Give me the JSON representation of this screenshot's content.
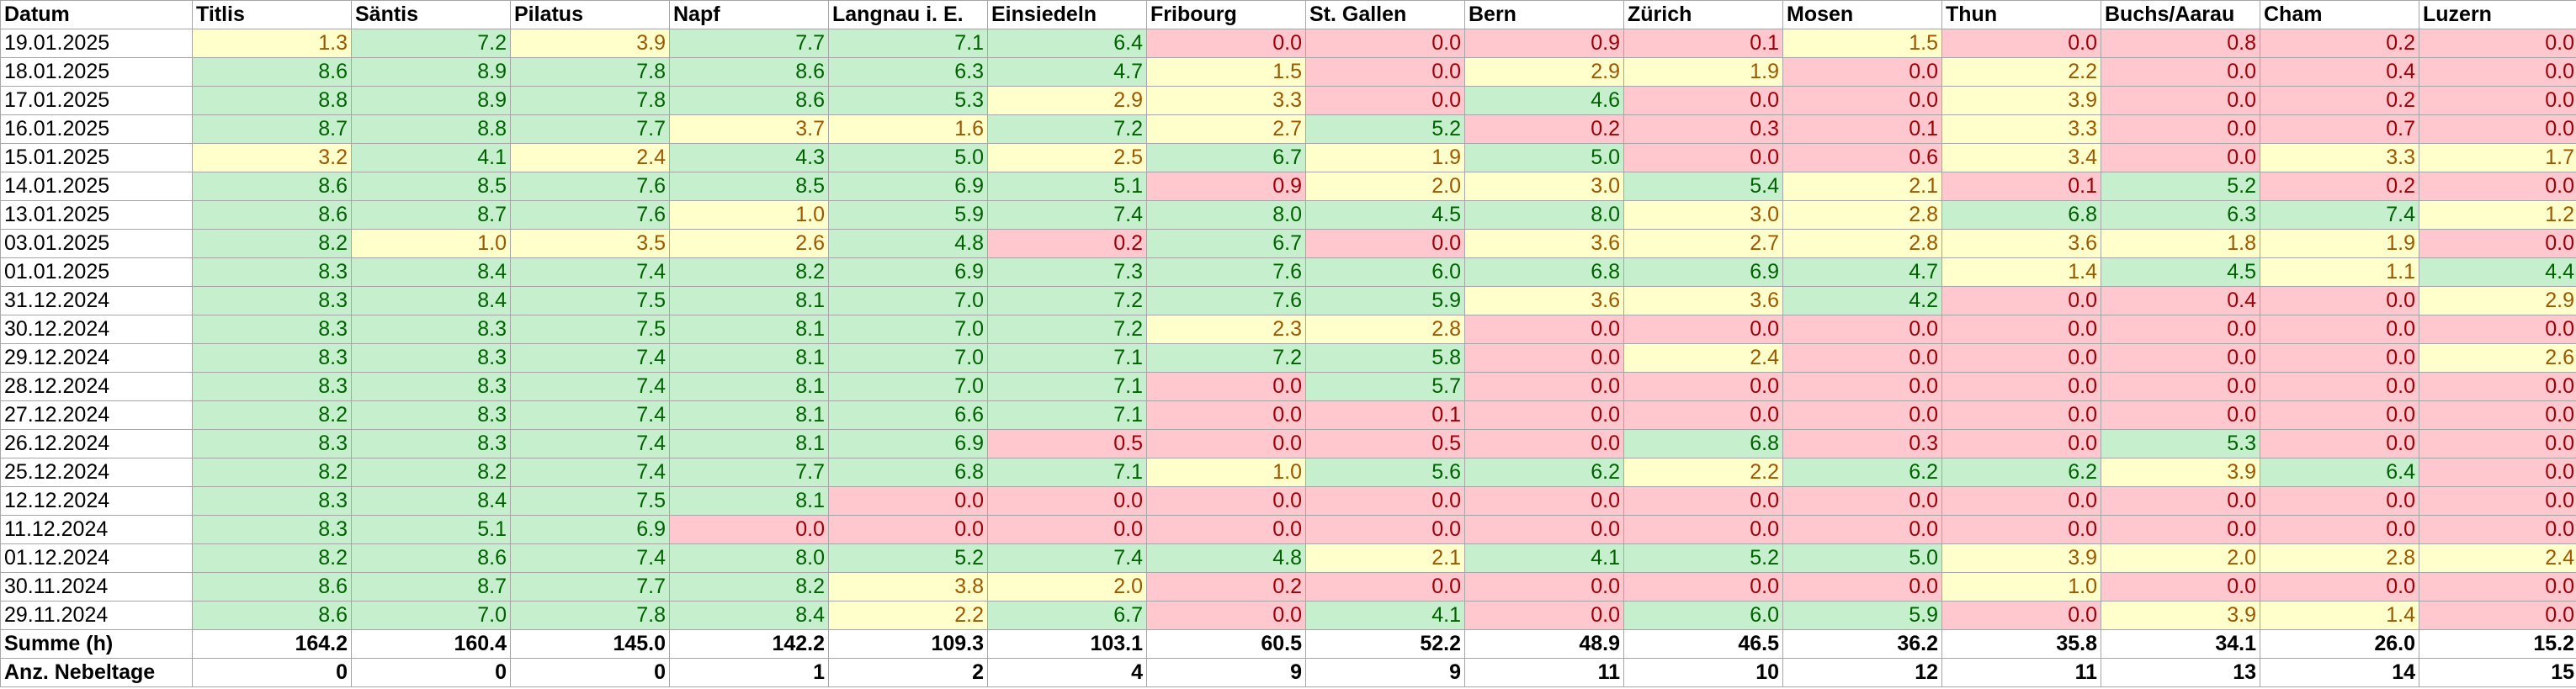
{
  "table": {
    "headers": [
      "Datum",
      "Titlis",
      "Säntis",
      "Pilatus",
      "Napf",
      "Langnau i. E.",
      "Einsiedeln",
      "Fribourg",
      "St. Gallen",
      "Bern",
      "Zürich",
      "Mosen",
      "Thun",
      "Buchs/Aarau",
      "Cham",
      "Luzern"
    ],
    "rows": [
      {
        "date": "19.01.2025",
        "values": [
          "1.3",
          "7.2",
          "3.9",
          "7.7",
          "7.1",
          "6.4",
          "0.0",
          "0.0",
          "0.9",
          "0.1",
          "1.5",
          "0.0",
          "0.8",
          "0.2",
          "0.0"
        ]
      },
      {
        "date": "18.01.2025",
        "values": [
          "8.6",
          "8.9",
          "7.8",
          "8.6",
          "6.3",
          "4.7",
          "1.5",
          "0.0",
          "2.9",
          "1.9",
          "0.0",
          "2.2",
          "0.0",
          "0.4",
          "0.0"
        ]
      },
      {
        "date": "17.01.2025",
        "values": [
          "8.8",
          "8.9",
          "7.8",
          "8.6",
          "5.3",
          "2.9",
          "3.3",
          "0.0",
          "4.6",
          "0.0",
          "0.0",
          "3.9",
          "0.0",
          "0.2",
          "0.0"
        ]
      },
      {
        "date": "16.01.2025",
        "values": [
          "8.7",
          "8.8",
          "7.7",
          "3.7",
          "1.6",
          "7.2",
          "2.7",
          "5.2",
          "0.2",
          "0.3",
          "0.1",
          "3.3",
          "0.0",
          "0.7",
          "0.0"
        ]
      },
      {
        "date": "15.01.2025",
        "values": [
          "3.2",
          "4.1",
          "2.4",
          "4.3",
          "5.0",
          "2.5",
          "6.7",
          "1.9",
          "5.0",
          "0.0",
          "0.6",
          "3.4",
          "0.0",
          "3.3",
          "1.7"
        ]
      },
      {
        "date": "14.01.2025",
        "values": [
          "8.6",
          "8.5",
          "7.6",
          "8.5",
          "6.9",
          "5.1",
          "0.9",
          "2.0",
          "3.0",
          "5.4",
          "2.1",
          "0.1",
          "5.2",
          "0.2",
          "0.0"
        ]
      },
      {
        "date": "13.01.2025",
        "values": [
          "8.6",
          "8.7",
          "7.6",
          "1.0",
          "5.9",
          "7.4",
          "8.0",
          "4.5",
          "8.0",
          "3.0",
          "2.8",
          "6.8",
          "6.3",
          "7.4",
          "1.2"
        ]
      },
      {
        "date": "03.01.2025",
        "values": [
          "8.2",
          "1.0",
          "3.5",
          "2.6",
          "4.8",
          "0.2",
          "6.7",
          "0.0",
          "3.6",
          "2.7",
          "2.8",
          "3.6",
          "1.8",
          "1.9",
          "0.0"
        ]
      },
      {
        "date": "01.01.2025",
        "values": [
          "8.3",
          "8.4",
          "7.4",
          "8.2",
          "6.9",
          "7.3",
          "7.6",
          "6.0",
          "6.8",
          "6.9",
          "4.7",
          "1.4",
          "4.5",
          "1.1",
          "4.4"
        ]
      },
      {
        "date": "31.12.2024",
        "values": [
          "8.3",
          "8.4",
          "7.5",
          "8.1",
          "7.0",
          "7.2",
          "7.6",
          "5.9",
          "3.6",
          "3.6",
          "4.2",
          "0.0",
          "0.4",
          "0.0",
          "2.9"
        ]
      },
      {
        "date": "30.12.2024",
        "values": [
          "8.3",
          "8.3",
          "7.5",
          "8.1",
          "7.0",
          "7.2",
          "2.3",
          "2.8",
          "0.0",
          "0.0",
          "0.0",
          "0.0",
          "0.0",
          "0.0",
          "0.0"
        ]
      },
      {
        "date": "29.12.2024",
        "values": [
          "8.3",
          "8.3",
          "7.4",
          "8.1",
          "7.0",
          "7.1",
          "7.2",
          "5.8",
          "0.0",
          "2.4",
          "0.0",
          "0.0",
          "0.0",
          "0.0",
          "2.6"
        ]
      },
      {
        "date": "28.12.2024",
        "values": [
          "8.3",
          "8.3",
          "7.4",
          "8.1",
          "7.0",
          "7.1",
          "0.0",
          "5.7",
          "0.0",
          "0.0",
          "0.0",
          "0.0",
          "0.0",
          "0.0",
          "0.0"
        ]
      },
      {
        "date": "27.12.2024",
        "values": [
          "8.2",
          "8.3",
          "7.4",
          "8.1",
          "6.6",
          "7.1",
          "0.0",
          "0.1",
          "0.0",
          "0.0",
          "0.0",
          "0.0",
          "0.0",
          "0.0",
          "0.0"
        ]
      },
      {
        "date": "26.12.2024",
        "values": [
          "8.3",
          "8.3",
          "7.4",
          "8.1",
          "6.9",
          "0.5",
          "0.0",
          "0.5",
          "0.0",
          "6.8",
          "0.3",
          "0.0",
          "5.3",
          "0.0",
          "0.0"
        ]
      },
      {
        "date": "25.12.2024",
        "values": [
          "8.2",
          "8.2",
          "7.4",
          "7.7",
          "6.8",
          "7.1",
          "1.0",
          "5.6",
          "6.2",
          "2.2",
          "6.2",
          "6.2",
          "3.9",
          "6.4",
          "0.0"
        ]
      },
      {
        "date": "12.12.2024",
        "values": [
          "8.3",
          "8.4",
          "7.5",
          "8.1",
          "0.0",
          "0.0",
          "0.0",
          "0.0",
          "0.0",
          "0.0",
          "0.0",
          "0.0",
          "0.0",
          "0.0",
          "0.0"
        ]
      },
      {
        "date": "11.12.2024",
        "values": [
          "8.3",
          "5.1",
          "6.9",
          "0.0",
          "0.0",
          "0.0",
          "0.0",
          "0.0",
          "0.0",
          "0.0",
          "0.0",
          "0.0",
          "0.0",
          "0.0",
          "0.0"
        ]
      },
      {
        "date": "01.12.2024",
        "values": [
          "8.2",
          "8.6",
          "7.4",
          "8.0",
          "5.2",
          "7.4",
          "4.8",
          "2.1",
          "4.1",
          "5.2",
          "5.0",
          "3.9",
          "2.0",
          "2.8",
          "2.4"
        ]
      },
      {
        "date": "30.11.2024",
        "values": [
          "8.6",
          "8.7",
          "7.7",
          "8.2",
          "3.8",
          "2.0",
          "0.2",
          "0.0",
          "0.0",
          "0.0",
          "0.0",
          "1.0",
          "0.0",
          "0.0",
          "0.0"
        ]
      },
      {
        "date": "29.11.2024",
        "values": [
          "8.6",
          "7.0",
          "7.8",
          "8.4",
          "2.2",
          "6.7",
          "0.0",
          "4.1",
          "0.0",
          "6.0",
          "5.9",
          "0.0",
          "3.9",
          "1.4",
          "0.0"
        ]
      }
    ],
    "summary": [
      {
        "label": "Summe (h)",
        "values": [
          "164.2",
          "160.4",
          "145.0",
          "142.2",
          "109.3",
          "103.1",
          "60.5",
          "52.2",
          "48.9",
          "46.5",
          "36.2",
          "35.8",
          "34.1",
          "26.0",
          "15.2"
        ]
      },
      {
        "label": "Anz. Nebeltage",
        "values": [
          "0",
          "0",
          "0",
          "1",
          "2",
          "4",
          "9",
          "9",
          "11",
          "10",
          "12",
          "11",
          "13",
          "14",
          "15"
        ]
      }
    ]
  },
  "colors": {
    "high_bg": "#c6efce",
    "high_text": "#006100",
    "mid_bg": "#ffffcc",
    "mid_text": "#9c5700",
    "low_bg": "#ffc7ce",
    "low_text": "#9c0006",
    "grid": "#a6a6a6"
  }
}
